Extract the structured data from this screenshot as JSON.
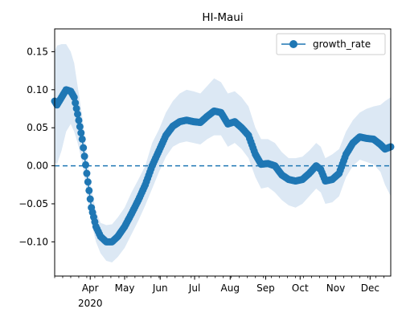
{
  "chart_data": {
    "type": "line",
    "title": "HI-Maui",
    "xlabel": "",
    "ylabel": "",
    "x_tick_labels": [
      {
        "label": "Apr",
        "date": "2020-04-01"
      },
      {
        "label": "May",
        "date": "2020-05-01"
      },
      {
        "label": "Jun",
        "date": "2020-06-01"
      },
      {
        "label": "Jul",
        "date": "2020-07-01"
      },
      {
        "label": "Aug",
        "date": "2020-08-01"
      },
      {
        "label": "Sep",
        "date": "2020-09-01"
      },
      {
        "label": "Oct",
        "date": "2020-10-01"
      },
      {
        "label": "Nov",
        "date": "2020-11-01"
      },
      {
        "label": "Dec",
        "date": "2020-12-01"
      }
    ],
    "x_year_label": "2020",
    "xlim": [
      "2020-03-01",
      "2020-12-19"
    ],
    "ylim": [
      -0.145,
      0.18
    ],
    "y_ticks": [
      -0.1,
      -0.05,
      0.0,
      0.05,
      0.1,
      0.15
    ],
    "y_tick_labels": [
      "−0.10",
      "−0.05",
      "0.00",
      "0.05",
      "0.10",
      "0.15"
    ],
    "reference_line": {
      "y": 0.0,
      "style": "dashed",
      "color": "#1f77b4"
    },
    "legend": {
      "position": "top-right",
      "entries": [
        "growth_rate"
      ]
    },
    "grid": false,
    "colors": {
      "series": "#1f77b4",
      "band": "#dce8f4"
    },
    "series": [
      {
        "name": "growth_rate",
        "marker": "circle",
        "confidence_band": true,
        "points": [
          [
            "2020-03-01",
            0.085,
            0.005,
            0.15
          ],
          [
            "2020-03-03",
            0.08,
            0.002,
            0.158
          ],
          [
            "2020-03-07",
            0.09,
            0.02,
            0.16
          ],
          [
            "2020-03-11",
            0.1,
            0.045,
            0.16
          ],
          [
            "2020-03-15",
            0.098,
            0.055,
            0.15
          ],
          [
            "2020-03-18",
            0.09,
            0.045,
            0.135
          ],
          [
            "2020-03-21",
            0.068,
            0.03,
            0.105
          ],
          [
            "2020-03-25",
            0.035,
            0.005,
            0.065
          ],
          [
            "2020-03-29",
            -0.01,
            -0.035,
            0.015
          ],
          [
            "2020-04-02",
            -0.055,
            -0.075,
            -0.03
          ],
          [
            "2020-04-06",
            -0.08,
            -0.1,
            -0.06
          ],
          [
            "2020-04-10",
            -0.093,
            -0.115,
            -0.075
          ],
          [
            "2020-04-15",
            -0.1,
            -0.125,
            -0.078
          ],
          [
            "2020-04-20",
            -0.1,
            -0.127,
            -0.077
          ],
          [
            "2020-04-25",
            -0.093,
            -0.12,
            -0.068
          ],
          [
            "2020-05-01",
            -0.08,
            -0.108,
            -0.055
          ],
          [
            "2020-05-07",
            -0.063,
            -0.09,
            -0.035
          ],
          [
            "2020-05-13",
            -0.045,
            -0.072,
            -0.018
          ],
          [
            "2020-05-19",
            -0.025,
            -0.052,
            0.0
          ],
          [
            "2020-05-25",
            0.0,
            -0.03,
            0.03
          ],
          [
            "2020-05-31",
            0.02,
            -0.008,
            0.048
          ],
          [
            "2020-06-06",
            0.04,
            0.012,
            0.07
          ],
          [
            "2020-06-12",
            0.052,
            0.025,
            0.085
          ],
          [
            "2020-06-18",
            0.058,
            0.03,
            0.095
          ],
          [
            "2020-06-24",
            0.06,
            0.032,
            0.1
          ],
          [
            "2020-06-30",
            0.058,
            0.03,
            0.098
          ],
          [
            "2020-07-06",
            0.057,
            0.028,
            0.095
          ],
          [
            "2020-07-12",
            0.065,
            0.035,
            0.105
          ],
          [
            "2020-07-18",
            0.072,
            0.04,
            0.115
          ],
          [
            "2020-07-24",
            0.07,
            0.04,
            0.11
          ],
          [
            "2020-07-30",
            0.055,
            0.025,
            0.095
          ],
          [
            "2020-08-05",
            0.058,
            0.03,
            0.098
          ],
          [
            "2020-08-11",
            0.05,
            0.022,
            0.09
          ],
          [
            "2020-08-17",
            0.04,
            0.01,
            0.078
          ],
          [
            "2020-08-23",
            0.015,
            -0.015,
            0.05
          ],
          [
            "2020-08-28",
            0.002,
            -0.03,
            0.035
          ],
          [
            "2020-09-03",
            0.003,
            -0.028,
            0.035
          ],
          [
            "2020-09-09",
            0.0,
            -0.035,
            0.03
          ],
          [
            "2020-09-15",
            -0.012,
            -0.045,
            0.018
          ],
          [
            "2020-09-21",
            -0.018,
            -0.052,
            0.01
          ],
          [
            "2020-09-27",
            -0.02,
            -0.055,
            0.01
          ],
          [
            "2020-10-03",
            -0.018,
            -0.05,
            0.012
          ],
          [
            "2020-10-09",
            -0.01,
            -0.04,
            0.02
          ],
          [
            "2020-10-15",
            0.0,
            -0.03,
            0.03
          ],
          [
            "2020-10-19",
            -0.005,
            -0.035,
            0.025
          ],
          [
            "2020-10-23",
            -0.02,
            -0.05,
            0.01
          ],
          [
            "2020-10-29",
            -0.018,
            -0.048,
            0.015
          ],
          [
            "2020-11-04",
            -0.01,
            -0.04,
            0.022
          ],
          [
            "2020-11-10",
            0.015,
            -0.015,
            0.045
          ],
          [
            "2020-11-16",
            0.03,
            0.0,
            0.06
          ],
          [
            "2020-11-22",
            0.038,
            0.008,
            0.07
          ],
          [
            "2020-11-28",
            0.036,
            0.005,
            0.075
          ],
          [
            "2020-12-04",
            0.035,
            0.002,
            0.078
          ],
          [
            "2020-12-10",
            0.028,
            -0.008,
            0.08
          ],
          [
            "2020-12-14",
            0.022,
            -0.025,
            0.085
          ],
          [
            "2020-12-19",
            0.025,
            -0.04,
            0.09
          ]
        ]
      }
    ]
  }
}
